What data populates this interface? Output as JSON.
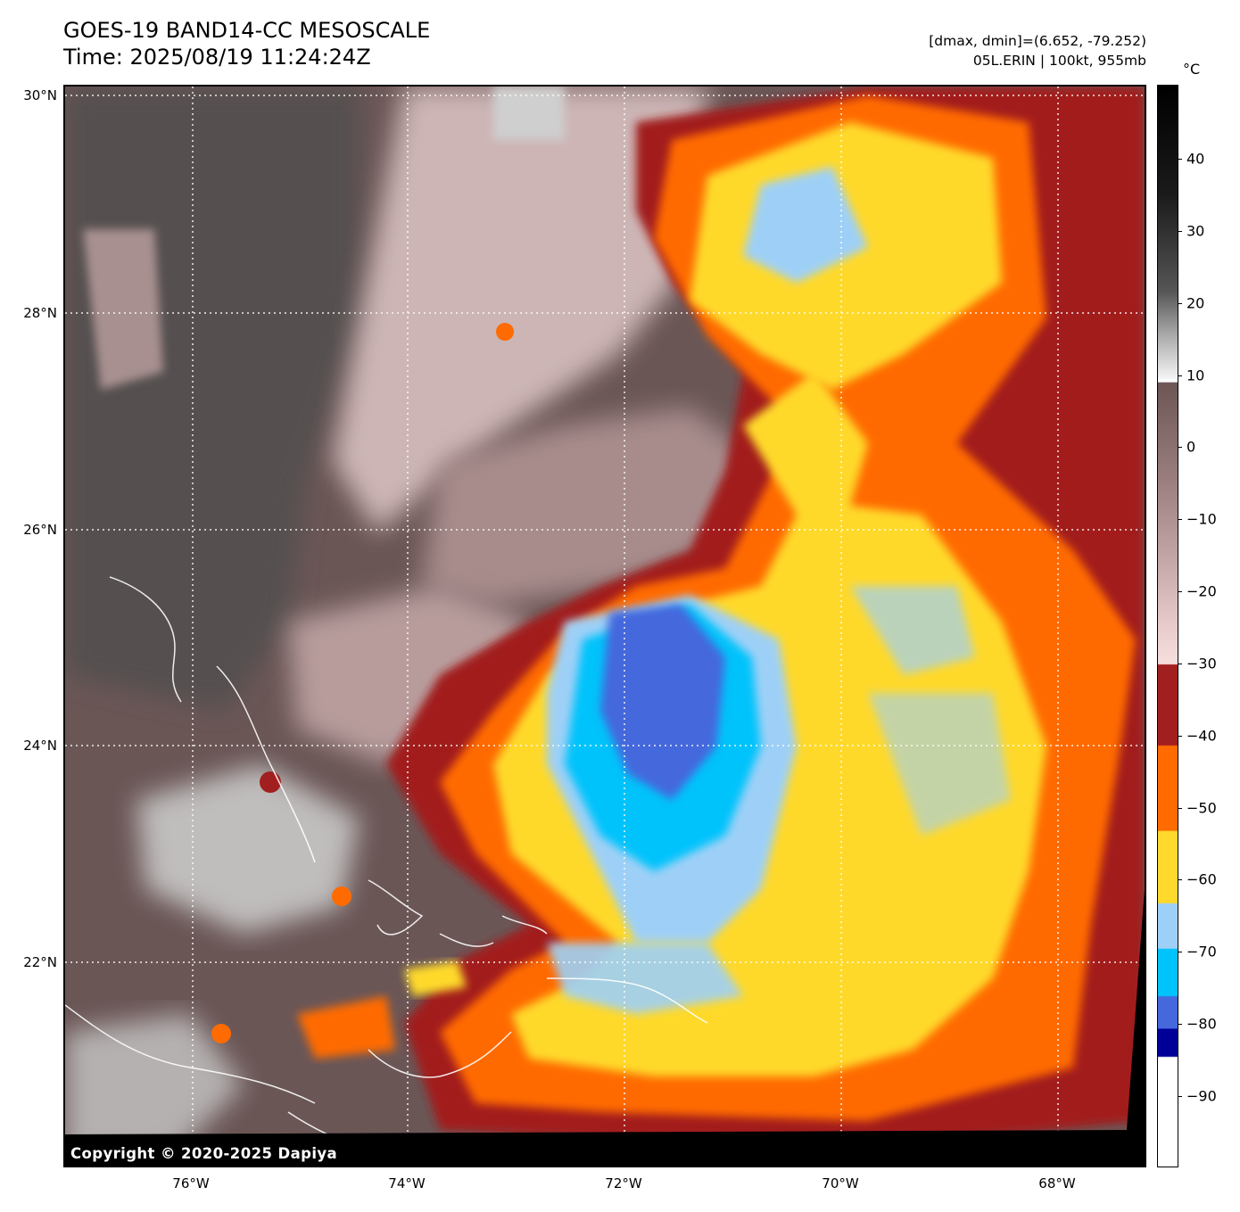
{
  "title": "GOES-19 BAND14-CC MESOSCALE",
  "time": "Time: 2025/08/19 11:24:24Z",
  "stats": "[dmax, dmin]=(6.652, -79.252)",
  "storm": "05L.ERIN | 100kt, 955mb",
  "copyright": "Copyright © 2020-2025 Dapiya",
  "colorbar": {
    "unit": "°C",
    "ticks": [
      {
        "value": 40,
        "label": "40"
      },
      {
        "value": 30,
        "label": "30"
      },
      {
        "value": 20,
        "label": "20"
      },
      {
        "value": 10,
        "label": "10"
      },
      {
        "value": 0,
        "label": "0"
      },
      {
        "value": -10,
        "label": "−10"
      },
      {
        "value": -20,
        "label": "−20"
      },
      {
        "value": -30,
        "label": "−30"
      },
      {
        "value": -40,
        "label": "−40"
      },
      {
        "value": -50,
        "label": "−50"
      },
      {
        "value": -60,
        "label": "−60"
      },
      {
        "value": -70,
        "label": "−70"
      },
      {
        "value": -80,
        "label": "−80"
      },
      {
        "value": -90,
        "label": "−90"
      }
    ],
    "colors": {
      "warm_land": "#5a4a4a",
      "cloud_gray": "#b8a0a0",
      "dark_red": "#a21f1f",
      "orange": "#ff6b00",
      "yellow": "#ffd92b",
      "light_blue": "#9ed0f7",
      "cyan": "#00c3fb",
      "royal_blue": "#4568dd",
      "navy": "#000096"
    }
  },
  "map": {
    "lat_labels": [
      {
        "value": 30,
        "label": "30°N"
      },
      {
        "value": 28,
        "label": "28°N"
      },
      {
        "value": 26,
        "label": "26°N"
      },
      {
        "value": 24,
        "label": "24°N"
      },
      {
        "value": 22,
        "label": "22°N"
      }
    ],
    "lon_labels": [
      {
        "value": -76,
        "label": "76°W"
      },
      {
        "value": -74,
        "label": "74°W"
      },
      {
        "value": -72,
        "label": "72°W"
      },
      {
        "value": -70,
        "label": "70°W"
      },
      {
        "value": -68,
        "label": "68°W"
      }
    ]
  }
}
